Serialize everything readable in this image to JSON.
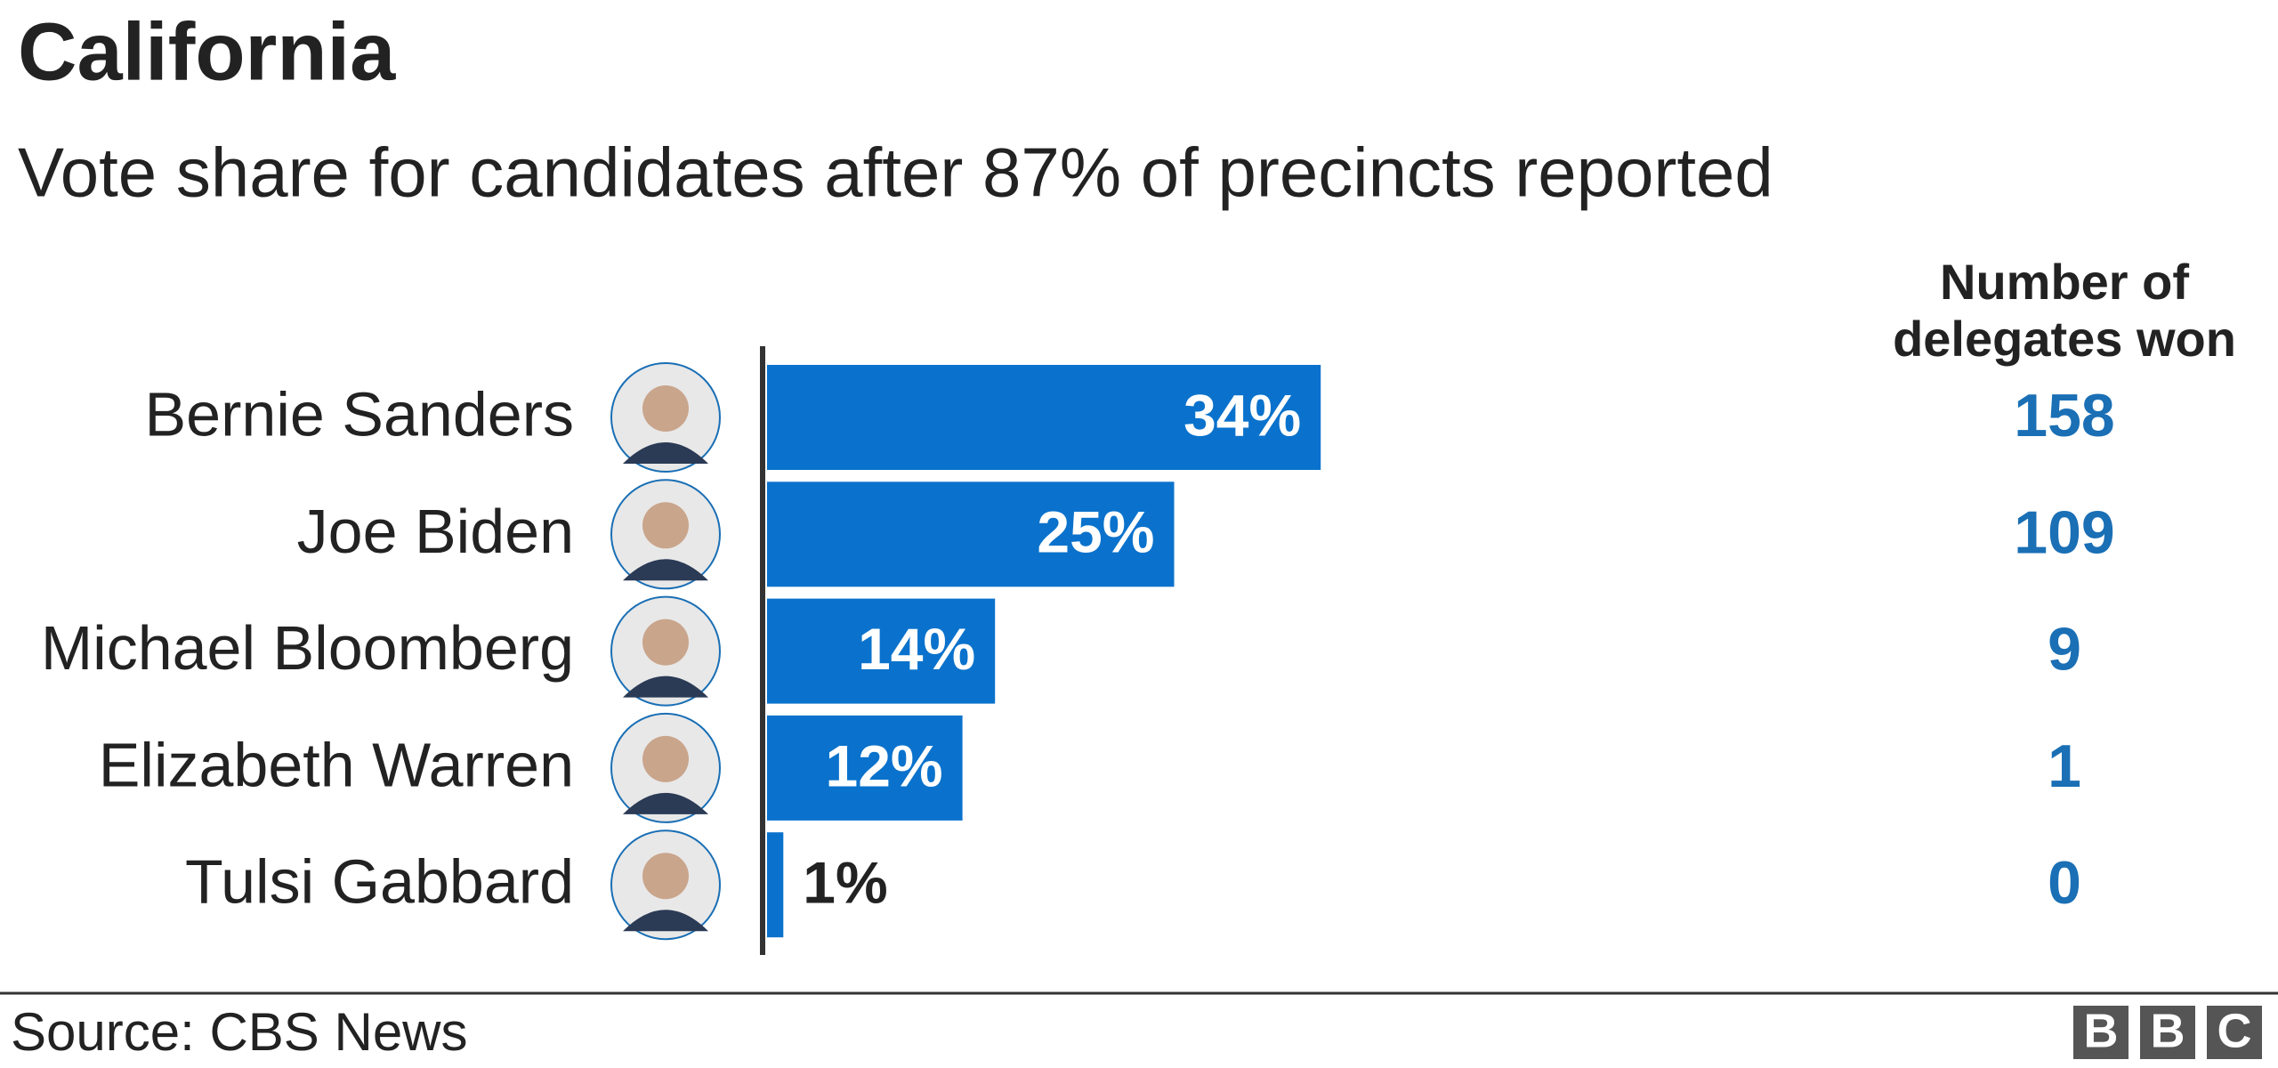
{
  "chart_data": {
    "type": "bar",
    "orientation": "horizontal",
    "title": "California",
    "subtitle": "Vote share for candidates after 87% of precincts reported",
    "categories": [
      "Bernie Sanders",
      "Joe Biden",
      "Michael Bloomberg",
      "Elizabeth Warren",
      "Tulsi Gabbard"
    ],
    "values": [
      34,
      25,
      14,
      12,
      1
    ],
    "value_labels": [
      "34%",
      "25%",
      "14%",
      "12%",
      "1%"
    ],
    "color": "#0a72cc",
    "delegates_header": "Number of delegates won",
    "delegates": [
      158,
      109,
      9,
      1,
      0
    ],
    "source": "Source: CBS News"
  }
}
